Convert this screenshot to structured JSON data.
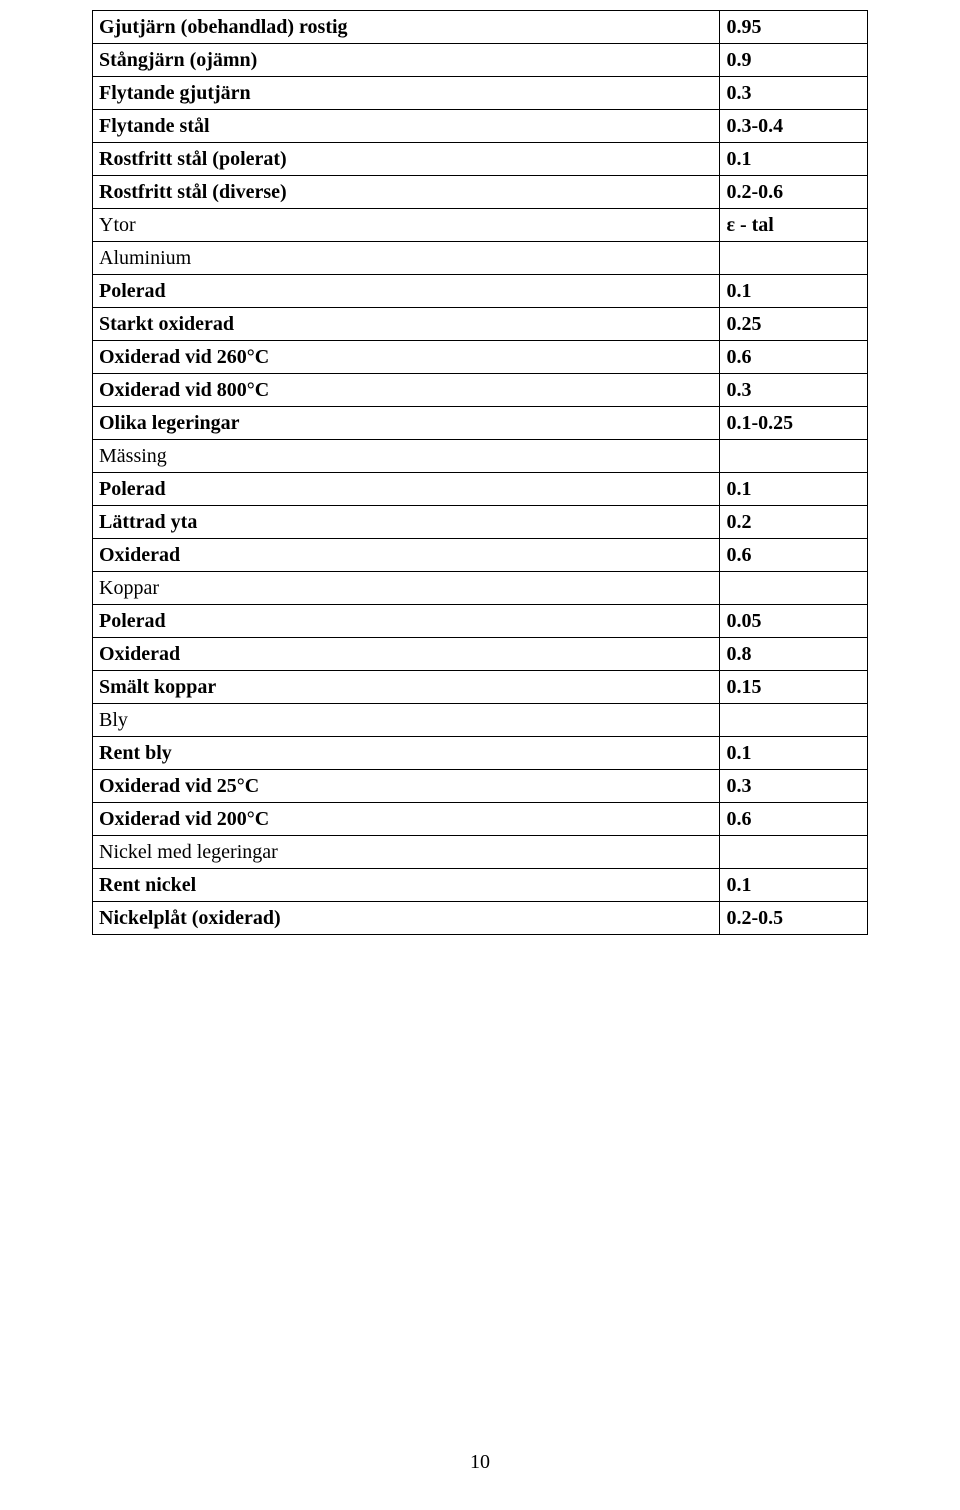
{
  "table": {
    "rows": [
      {
        "label": "Gjutjärn (obehandlad) rostig",
        "value": "0.95",
        "bold": true
      },
      {
        "label": "Stångjärn (ojämn)",
        "value": "0.9",
        "bold": true
      },
      {
        "label": "Flytande gjutjärn",
        "value": "0.3",
        "bold": true
      },
      {
        "label": "Flytande stål",
        "value": "0.3-0.4",
        "bold": true
      },
      {
        "label": "Rostfritt stål (polerat)",
        "value": "0.1",
        "bold": true
      },
      {
        "label": "Rostfritt stål (diverse)",
        "value": "0.2-0.6",
        "bold": true
      },
      {
        "label": "Ytor",
        "value": "ε - tal",
        "bold": false,
        "value_bold": true
      },
      {
        "label": "Aluminium",
        "value": "",
        "bold": false
      },
      {
        "label": "Polerad",
        "value": "0.1",
        "bold": true
      },
      {
        "label": "Starkt oxiderad",
        "value": "0.25",
        "bold": true
      },
      {
        "label": "Oxiderad vid 260°C",
        "value": "0.6",
        "bold": true
      },
      {
        "label": "Oxiderad vid 800°C",
        "value": "0.3",
        "bold": true
      },
      {
        "label": "Olika legeringar",
        "value": "0.1-0.25",
        "bold": true
      },
      {
        "label": "Mässing",
        "value": "",
        "bold": false
      },
      {
        "label": "Polerad",
        "value": "0.1",
        "bold": true
      },
      {
        "label": "Lättrad yta",
        "value": "0.2",
        "bold": true
      },
      {
        "label": "Oxiderad",
        "value": "0.6",
        "bold": true
      },
      {
        "label": "Koppar",
        "value": "",
        "bold": false
      },
      {
        "label": "Polerad",
        "value": "0.05",
        "bold": true
      },
      {
        "label": "Oxiderad",
        "value": "0.8",
        "bold": true
      },
      {
        "label": "Smält koppar",
        "value": "0.15",
        "bold": true
      },
      {
        "label": "Bly",
        "value": "",
        "bold": false
      },
      {
        "label": "Rent bly",
        "value": "0.1",
        "bold": true
      },
      {
        "label": "Oxiderad vid 25°C",
        "value": "0.3",
        "bold": true
      },
      {
        "label": "Oxiderad vid 200°C",
        "value": "0.6",
        "bold": true
      },
      {
        "label": "Nickel med legeringar",
        "value": "",
        "bold": false
      },
      {
        "label": "Rent nickel",
        "value": "0.1",
        "bold": true
      },
      {
        "label": "Nickelplåt (oxiderad)",
        "value": "0.2-0.5",
        "bold": true
      }
    ]
  },
  "page_number": "10"
}
